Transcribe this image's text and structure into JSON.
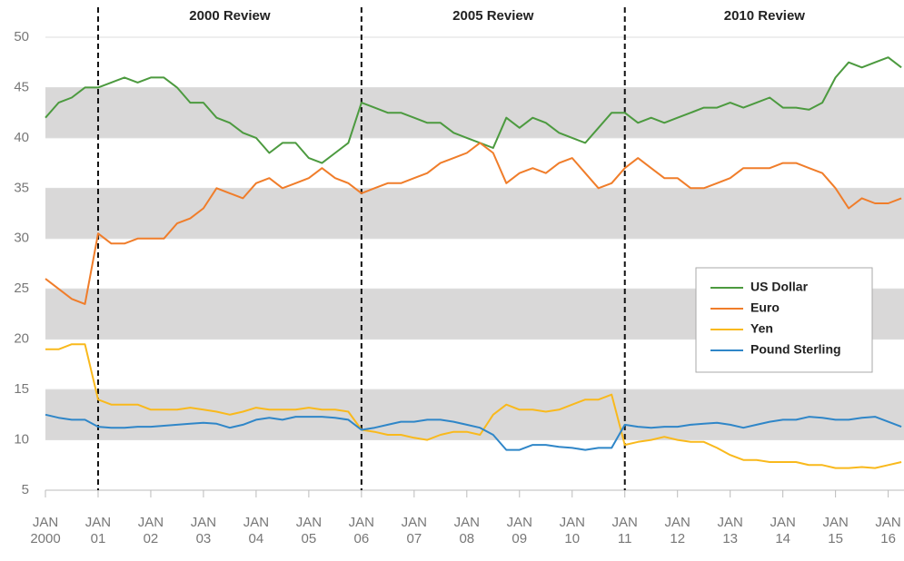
{
  "chart_data": {
    "type": "line",
    "x": [
      2000,
      2000.25,
      2000.5,
      2000.75,
      2001,
      2001.25,
      2001.5,
      2001.75,
      2002,
      2002.25,
      2002.5,
      2002.75,
      2003,
      2003.25,
      2003.5,
      2003.75,
      2004,
      2004.25,
      2004.5,
      2004.75,
      2005,
      2005.25,
      2005.5,
      2005.75,
      2006,
      2006.25,
      2006.5,
      2006.75,
      2007,
      2007.25,
      2007.5,
      2007.75,
      2008,
      2008.25,
      2008.5,
      2008.75,
      2009,
      2009.25,
      2009.5,
      2009.75,
      2010,
      2010.25,
      2010.5,
      2010.75,
      2011,
      2011.25,
      2011.5,
      2011.75,
      2012,
      2012.25,
      2012.5,
      2012.75,
      2013,
      2013.25,
      2013.5,
      2013.75,
      2014,
      2014.25,
      2014.5,
      2014.75,
      2015,
      2015.25,
      2015.5,
      2015.75,
      2016,
      2016.25
    ],
    "series": [
      {
        "name": "US Dollar",
        "color": "#4c9a3f",
        "values": [
          42,
          43.5,
          44,
          45,
          45,
          45.5,
          46,
          45.5,
          46,
          46,
          45,
          43.5,
          43.5,
          42,
          41.5,
          40.5,
          40,
          38.5,
          39.5,
          39.5,
          38,
          37.5,
          38.5,
          39.5,
          43.5,
          43,
          42.5,
          42.5,
          42,
          41.5,
          41.5,
          40.5,
          40,
          39.5,
          39,
          42,
          41,
          42,
          41.5,
          40.5,
          40,
          39.5,
          41,
          42.5,
          42.5,
          41.5,
          42,
          41.5,
          42,
          42.5,
          43,
          43,
          43.5,
          43,
          43.5,
          44,
          43,
          43,
          42.8,
          43.5,
          46,
          47.5,
          47,
          47.5,
          48,
          47
        ]
      },
      {
        "name": "Euro",
        "color": "#f07d2a",
        "values": [
          26,
          25,
          24,
          23.5,
          30.5,
          29.5,
          29.5,
          30,
          30,
          30,
          31.5,
          32,
          33,
          35,
          34.5,
          34,
          35.5,
          36,
          35,
          35.5,
          36,
          37,
          36,
          35.5,
          34.5,
          35,
          35.5,
          35.5,
          36,
          36.5,
          37.5,
          38,
          38.5,
          39.5,
          38.5,
          35.5,
          36.5,
          37,
          36.5,
          37.5,
          38,
          36.5,
          35,
          35.5,
          37,
          38,
          37,
          36,
          36,
          35,
          35,
          35.5,
          36,
          37,
          37,
          37,
          37.5,
          37.5,
          37,
          36.5,
          35,
          33,
          34,
          33.5,
          33.5,
          34
        ]
      },
      {
        "name": "Yen",
        "color": "#f9b91c",
        "values": [
          19,
          19,
          19.5,
          19.5,
          14,
          13.5,
          13.5,
          13.5,
          13,
          13,
          13,
          13.2,
          13,
          12.8,
          12.5,
          12.8,
          13.2,
          13,
          13,
          13,
          13.2,
          13,
          13,
          12.8,
          11,
          10.8,
          10.5,
          10.5,
          10.2,
          10,
          10.5,
          10.8,
          10.8,
          10.5,
          12.5,
          13.5,
          13,
          13,
          12.8,
          13,
          13.5,
          14,
          14,
          14.5,
          9.5,
          9.8,
          10,
          10.3,
          10,
          9.8,
          9.8,
          9.2,
          8.5,
          8,
          8,
          7.8,
          7.8,
          7.8,
          7.5,
          7.5,
          7.2,
          7.2,
          7.3,
          7.2,
          7.5,
          7.8
        ]
      },
      {
        "name": "Pound Sterling",
        "color": "#2f86c8",
        "values": [
          12.5,
          12.2,
          12,
          12,
          11.3,
          11.2,
          11.2,
          11.3,
          11.3,
          11.4,
          11.5,
          11.6,
          11.7,
          11.6,
          11.2,
          11.5,
          12,
          12.2,
          12,
          12.3,
          12.3,
          12.3,
          12.2,
          12,
          11,
          11.2,
          11.5,
          11.8,
          11.8,
          12,
          12,
          11.8,
          11.5,
          11.2,
          10.5,
          9,
          9,
          9.5,
          9.5,
          9.3,
          9.2,
          9,
          9.2,
          9.2,
          11.5,
          11.3,
          11.2,
          11.3,
          11.3,
          11.5,
          11.6,
          11.7,
          11.5,
          11.2,
          11.5,
          11.8,
          12,
          12,
          12.3,
          12.2,
          12,
          12,
          12.2,
          12.3,
          11.8,
          11.3
        ]
      }
    ],
    "xlim": [
      2000,
      2016.3
    ],
    "xticks": [
      {
        "value": 2000,
        "label": "JAN\n2000"
      },
      {
        "value": 2001,
        "label": "JAN\n01"
      },
      {
        "value": 2002,
        "label": "JAN\n02"
      },
      {
        "value": 2003,
        "label": "JAN\n03"
      },
      {
        "value": 2004,
        "label": "JAN\n04"
      },
      {
        "value": 2005,
        "label": "JAN\n05"
      },
      {
        "value": 2006,
        "label": "JAN\n06"
      },
      {
        "value": 2007,
        "label": "JAN\n07"
      },
      {
        "value": 2008,
        "label": "JAN\n08"
      },
      {
        "value": 2009,
        "label": "JAN\n09"
      },
      {
        "value": 2010,
        "label": "JAN\n10"
      },
      {
        "value": 2011,
        "label": "JAN\n11"
      },
      {
        "value": 2012,
        "label": "JAN\n12"
      },
      {
        "value": 2013,
        "label": "JAN\n13"
      },
      {
        "value": 2014,
        "label": "JAN\n14"
      },
      {
        "value": 2015,
        "label": "JAN\n15"
      },
      {
        "value": 2016,
        "label": "JAN\n16"
      }
    ],
    "ylim": [
      5,
      50
    ],
    "yticks": [
      5,
      10,
      15,
      20,
      25,
      30,
      35,
      40,
      45,
      50
    ],
    "banded_grid": true,
    "annotations": [
      {
        "label": "2000 Review",
        "x": 2001
      },
      {
        "label": "2005 Review",
        "x": 2006
      },
      {
        "label": "2010 Review",
        "x": 2011
      }
    ]
  }
}
